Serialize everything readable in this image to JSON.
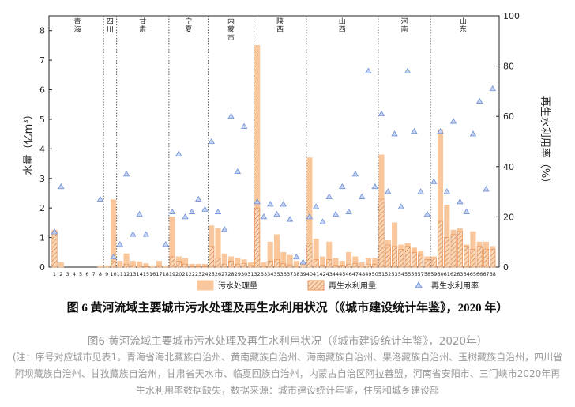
{
  "chart_data": {
    "type": "bar",
    "categories": [
      "1",
      "2",
      "3",
      "4",
      "5",
      "6",
      "7",
      "8",
      "9",
      "10",
      "11",
      "12",
      "13",
      "14",
      "15",
      "16",
      "17",
      "18",
      "19",
      "20",
      "21",
      "22",
      "23",
      "24",
      "25",
      "26",
      "27",
      "28",
      "29",
      "30",
      "31",
      "32",
      "33",
      "34",
      "35",
      "36",
      "37",
      "38",
      "39",
      "40",
      "41",
      "42",
      "43",
      "44",
      "45",
      "46",
      "47",
      "48",
      "49",
      "50",
      "51",
      "52",
      "53",
      "54",
      "55",
      "56",
      "57",
      "58",
      "59",
      "60",
      "61",
      "62",
      "63",
      "64",
      "65",
      "66",
      "67",
      "68"
    ],
    "groups": [
      {
        "name": "青海",
        "span": 8
      },
      {
        "name": "四川",
        "span": 2
      },
      {
        "name": "甘肃",
        "span": 8
      },
      {
        "name": "宁夏",
        "span": 6
      },
      {
        "name": "内蒙古",
        "span": 7
      },
      {
        "name": "陕西",
        "span": 8
      },
      {
        "name": "山西",
        "span": 11
      },
      {
        "name": "河南",
        "span": 8
      },
      {
        "name": "山东",
        "span": 10
      }
    ],
    "series": [
      {
        "name": "污水处理量",
        "type": "bar",
        "color": "#f9c79b",
        "values": [
          1.25,
          0.15,
          0,
          0,
          0,
          0,
          0,
          0.05,
          0.05,
          2.28,
          0.2,
          0.45,
          0.2,
          0.18,
          0.12,
          0.05,
          0.2,
          0.05,
          1.7,
          0.35,
          0.3,
          0.1,
          0.1,
          0.1,
          1.4,
          1.3,
          0.45,
          0.35,
          0.3,
          0.25,
          0.15,
          7.5,
          0.15,
          0.85,
          1.1,
          0.5,
          0.4,
          0.2,
          0.15,
          3.7,
          0.95,
          0.35,
          0.85,
          0.3,
          0.2,
          0.5,
          0.35,
          0.15,
          0.3,
          0.3,
          3.8,
          0.9,
          1.5,
          0.75,
          0.8,
          0.65,
          0.55,
          0.35,
          0.35,
          4.65,
          2.1,
          1.25,
          1.3,
          0.75,
          1.2,
          0.85,
          0.85,
          0.7
        ]
      },
      {
        "name": "再生水利用量",
        "type": "bar",
        "hatch": true,
        "color": "#e8945a",
        "values": [
          1.2,
          0,
          0,
          0,
          0,
          0,
          0,
          0,
          0,
          0.2,
          0,
          0.1,
          0.05,
          0.05,
          0.02,
          0,
          0.05,
          0,
          0.35,
          0.2,
          0.1,
          0.02,
          0.02,
          0.02,
          0.7,
          0.3,
          0.1,
          0.2,
          0.1,
          0.12,
          0.05,
          2.0,
          0.03,
          0.2,
          0.25,
          0.12,
          0.08,
          0.01,
          0,
          0.8,
          0.25,
          0.06,
          0.25,
          0.06,
          0.06,
          0.1,
          0.12,
          0.04,
          0.1,
          0.1,
          2.3,
          0.75,
          0.7,
          0.6,
          0.7,
          0.5,
          0.4,
          0.25,
          0.3,
          1.55,
          1.0,
          1.1,
          1.2,
          0.7,
          0.6,
          0.7,
          0.6,
          0.6
        ]
      },
      {
        "name": "再生水利用率",
        "type": "scatter",
        "axis": "y2",
        "color": "#6d8fd8",
        "values": [
          14,
          32,
          null,
          null,
          null,
          null,
          null,
          27,
          null,
          4,
          9,
          37,
          13,
          21,
          13,
          null,
          null,
          9,
          22,
          45,
          20,
          22,
          27,
          23,
          50,
          22,
          15,
          60,
          38,
          56,
          null,
          26,
          20,
          25,
          21,
          25,
          19,
          4,
          2,
          20,
          24,
          18,
          28,
          21,
          32,
          22,
          37,
          28,
          78,
          32,
          61,
          30,
          53,
          24,
          78,
          54,
          30,
          21,
          34,
          54,
          30,
          58,
          26,
          22,
          53,
          66,
          31,
          71
        ]
      }
    ],
    "ylabel": "水量（亿m³）",
    "y2label": "再生水利用率（%）",
    "ylim": [
      0,
      8.5
    ],
    "yticks": [
      0,
      1,
      2,
      3,
      4,
      5,
      6,
      7,
      8
    ],
    "y2lim": [
      0,
      100
    ],
    "y2ticks": [
      0,
      20,
      40,
      60,
      80,
      100
    ]
  },
  "figure_caption": "图 6  黄河流域主要城市污水处理及再生水利用状况（《城市建设统计年鉴》，2020 年）",
  "subcaption": "图6 黄河流域主要城市污水处理及再生水利用状况（《城市建设统计年鉴》，2020年）",
  "note": "(注：序号对应城市见表1。青海省海北藏族自治州、黄南藏族自治州、海南藏族自治州、果洛藏族自治州、玉树藏族自治州，四川省阿坝藏族自治州、甘孜藏族自治州，甘肃省天水市、临夏回族自治州，内蒙古自治区阿拉善盟，河南省安阳市、三门峡市2020年再生水利用率数据缺失，数据来源：城市建设统计年鉴，住房和城乡建设部"
}
